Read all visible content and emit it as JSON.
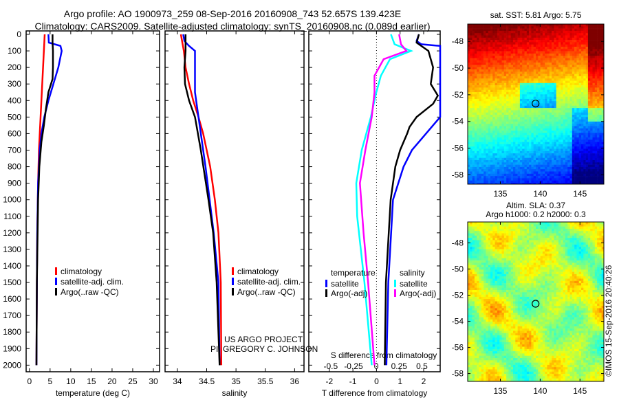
{
  "title": {
    "line1": "Argo profile: AO 1900973_259 08-Sep-2016 20160908_743 52.657S 139.423E",
    "line2": "Climatology: CARS2009. Satellite-adjusted climatology: synTS_20160908.nc (0.089d earlier)"
  },
  "credits": {
    "project": "US ARGO PROJECT",
    "pi": "PI: GREGORY C. JOHNSON",
    "imos": "©IMOS 15-Sep-2016 20:40:26"
  },
  "colors": {
    "climatology": "#ff0000",
    "satellite": "#0000ff",
    "argo": "#000000",
    "sal_sat": "#00ffff",
    "sal_argo": "#ff00ff"
  },
  "chart_data": [
    {
      "type": "line",
      "name": "temperature",
      "xlabel": "temperature (deg C)",
      "xlim": [
        -0.8,
        31.5
      ],
      "ylim": [
        0,
        2040
      ],
      "yreverse": true,
      "xticks": [
        0,
        5,
        10,
        15,
        20,
        25,
        30
      ],
      "yticks": [
        0,
        100,
        200,
        300,
        400,
        500,
        600,
        700,
        800,
        900,
        1000,
        1100,
        1200,
        1300,
        1400,
        1500,
        1600,
        1700,
        1800,
        1900,
        2000
      ],
      "legend": [
        "climatology",
        "satellite-adj. clim.",
        "Argo(..raw -QC)"
      ],
      "series": [
        {
          "name": "climatology",
          "color": "#ff0000",
          "depth": [
            0,
            50,
            100,
            200,
            300,
            400,
            500,
            600,
            700,
            900,
            1200,
            1500,
            2000
          ],
          "values": [
            3.7,
            3.6,
            3.5,
            3.3,
            3.1,
            2.9,
            2.7,
            2.5,
            2.3,
            2.1,
            1.9,
            1.8,
            1.7
          ]
        },
        {
          "name": "satellite-adj. clim.",
          "color": "#0000ff",
          "depth": [
            0,
            50,
            70,
            100,
            200,
            300,
            400,
            500,
            600,
            700,
            900,
            1200,
            1500,
            2000
          ],
          "values": [
            4.6,
            4.7,
            7.5,
            7.8,
            7.0,
            5.8,
            4.6,
            3.6,
            2.9,
            2.5,
            2.1,
            1.9,
            1.8,
            1.7
          ]
        },
        {
          "name": "Argo(..raw -QC)",
          "color": "#000000",
          "depth": [
            0,
            50,
            100,
            200,
            270,
            350,
            450,
            550,
            650,
            800,
            1000,
            1500,
            2000
          ],
          "values": [
            5.6,
            5.6,
            5.7,
            5.7,
            5.6,
            4.6,
            4.0,
            3.5,
            2.9,
            2.4,
            2.1,
            1.8,
            1.7
          ]
        }
      ]
    },
    {
      "type": "line",
      "name": "salinity",
      "xlabel": "salinity",
      "xlim": [
        33.79,
        36.16
      ],
      "ylim": [
        0,
        2040
      ],
      "yreverse": true,
      "xticks": [
        34,
        34.5,
        35,
        35.5,
        36
      ],
      "legend": [
        "climatology",
        "satellite-adj. clim.",
        "Argo(..raw -QC)"
      ],
      "series": [
        {
          "name": "climatology",
          "color": "#ff0000",
          "depth": [
            0,
            100,
            200,
            300,
            400,
            500,
            600,
            800,
            1000,
            1200,
            1500,
            2000
          ],
          "values": [
            34.06,
            34.11,
            34.14,
            34.2,
            34.27,
            34.36,
            34.44,
            34.56,
            34.64,
            34.7,
            34.74,
            34.75
          ]
        },
        {
          "name": "satellite-adj. clim.",
          "color": "#0000ff",
          "depth": [
            0,
            40,
            70,
            100,
            200,
            350,
            450,
            600,
            800,
            1000,
            1200,
            1500,
            2000
          ],
          "values": [
            34.1,
            34.12,
            34.2,
            34.3,
            34.3,
            34.3,
            34.34,
            34.4,
            34.48,
            34.55,
            34.62,
            34.7,
            34.72
          ]
        },
        {
          "name": "Argo(..raw -QC)",
          "color": "#000000",
          "depth": [
            0,
            100,
            200,
            300,
            400,
            500,
            700,
            1000,
            1200,
            1500,
            2000
          ],
          "values": [
            34.14,
            34.14,
            34.12,
            34.13,
            34.2,
            34.3,
            34.4,
            34.53,
            34.61,
            34.67,
            34.72
          ]
        }
      ]
    },
    {
      "type": "line",
      "name": "difference",
      "xlabel": "T difference from climatology",
      "xlabel2": "S difference from climatology",
      "xlim": [
        -2.87,
        2.7
      ],
      "xlim2": [
        -0.74,
        0.7
      ],
      "ylim": [
        0,
        2040
      ],
      "yreverse": true,
      "xticks": [
        -2,
        -1,
        0,
        1,
        2
      ],
      "xticks2": [
        -0.5,
        -0.25,
        0,
        0.25,
        0.5
      ],
      "legend_groups": [
        {
          "title": "temperature",
          "items": [
            "satellite",
            "Argo(-adj)"
          ]
        },
        {
          "title": "salinity",
          "items": [
            "satellite",
            "Argo(-adj)"
          ]
        }
      ],
      "series": [
        {
          "name": "T satellite",
          "axis": "T",
          "color": "#0000ff",
          "depth": [
            0,
            40,
            60,
            70,
            200,
            400,
            500,
            600,
            700,
            800,
            1000,
            1500,
            2000
          ],
          "values": [
            1.8,
            1.7,
            1.9,
            2.7,
            2.8,
            2.8,
            2.7,
            2.1,
            1.5,
            1.15,
            0.7,
            0.5,
            0.42
          ]
        },
        {
          "name": "T Argo(-adj)",
          "axis": "T",
          "color": "#000000",
          "depth": [
            0,
            50,
            100,
            150,
            200,
            300,
            370,
            420,
            500,
            560,
            600,
            700,
            800,
            1000,
            1500,
            2000
          ],
          "values": [
            1.8,
            1.7,
            2.2,
            2.3,
            2.4,
            2.3,
            2.6,
            2.4,
            1.7,
            1.4,
            1.3,
            1.0,
            0.8,
            0.6,
            0.4,
            0.35
          ]
        },
        {
          "name": "S satellite",
          "axis": "S",
          "color": "#00ffff",
          "depth": [
            0,
            60,
            100,
            150,
            250,
            350,
            500,
            700,
            900,
            1100,
            1500,
            2000
          ],
          "values": [
            0.16,
            0.2,
            0.38,
            0.15,
            0.05,
            0.0,
            -0.06,
            -0.16,
            -0.22,
            -0.21,
            -0.13,
            -0.05
          ]
        },
        {
          "name": "S Argo(-adj)",
          "axis": "S",
          "color": "#ff00ff",
          "depth": [
            0,
            60,
            100,
            150,
            250,
            350,
            500,
            700,
            900,
            1200,
            1500,
            2000
          ],
          "values": [
            0.25,
            0.27,
            0.33,
            0.08,
            -0.02,
            -0.02,
            -0.05,
            -0.12,
            -0.18,
            -0.14,
            -0.09,
            -0.02
          ]
        }
      ]
    },
    {
      "type": "heatmap",
      "name": "sst-map",
      "title": "sat. SST: 5.81  Argo: 5.75",
      "xlim": [
        130.9,
        148
      ],
      "ylim": [
        -58.7,
        -46.7
      ],
      "xticks": [
        135,
        140,
        145
      ],
      "yticks": [
        -48,
        -50,
        -52,
        -54,
        -56,
        -58
      ],
      "marker": {
        "lon": 139.423,
        "lat": -52.657
      }
    },
    {
      "type": "heatmap",
      "name": "sla-map",
      "title": "Altim. SLA: 0.37",
      "title2": "Argo h1000: 0.2 h2000: 0.3",
      "xlim": [
        130.9,
        148
      ],
      "ylim": [
        -58.6,
        -46.4
      ],
      "xticks": [
        135,
        140,
        145
      ],
      "yticks": [
        -48,
        -50,
        -52,
        -54,
        -56,
        -58
      ],
      "marker": {
        "lon": 139.423,
        "lat": -52.657
      }
    }
  ]
}
